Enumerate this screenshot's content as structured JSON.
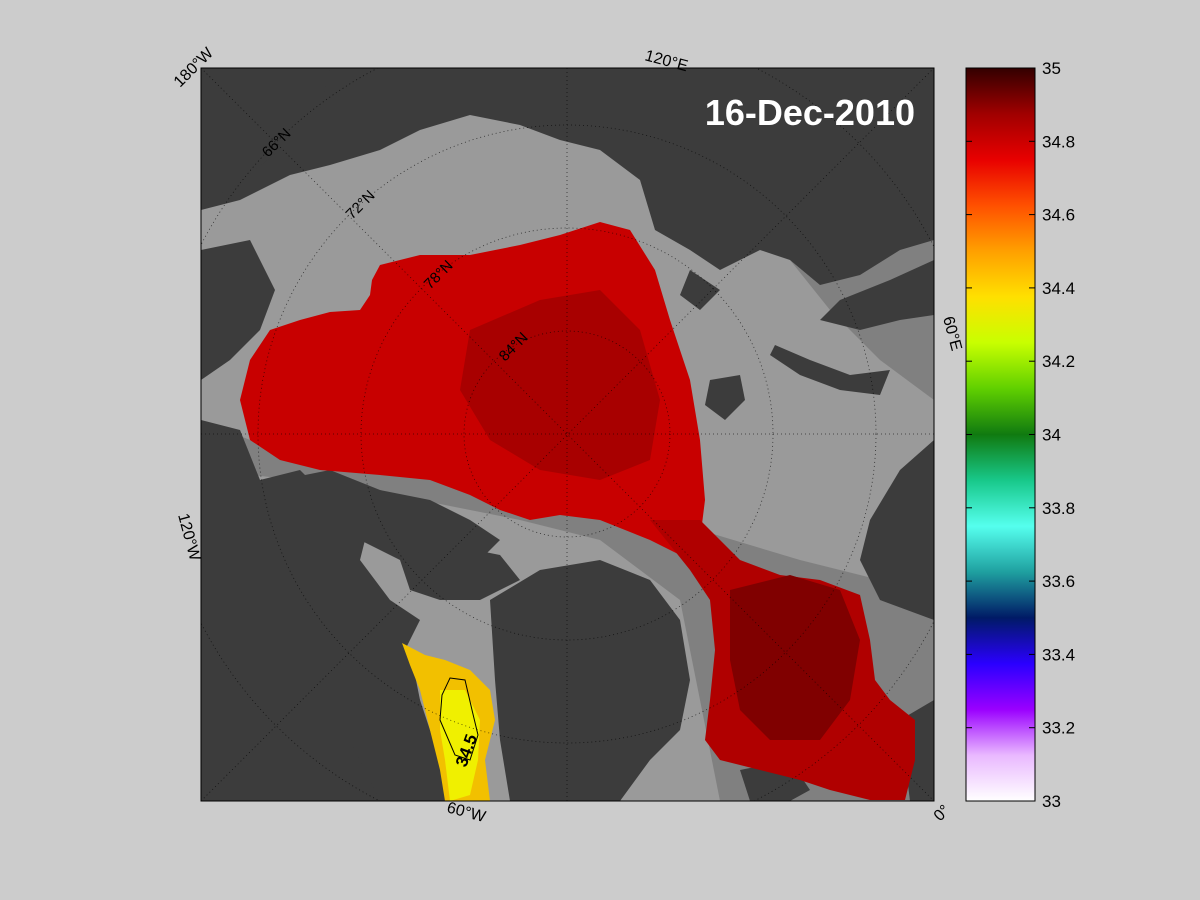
{
  "map": {
    "date_label": "16-Dec-2010",
    "longitude_labels": [
      "180°W",
      "120°E",
      "60°E",
      "0°",
      "60°W",
      "120°W"
    ],
    "latitude_labels": [
      "66°N",
      "72°N",
      "78°N",
      "84°N"
    ],
    "contour_label": "34.5",
    "colors": {
      "background": "#cccccc",
      "land": "#3c3c3c",
      "ocean_no_data": "#808080",
      "shelf": "#9a9a9a"
    }
  },
  "colorbar": {
    "min": 33,
    "max": 35,
    "ticks": [
      "35",
      "34.8",
      "34.6",
      "34.4",
      "34.2",
      "34",
      "33.8",
      "33.6",
      "33.4",
      "33.2",
      "33"
    ],
    "colors": [
      "#ffffff",
      "#e9b8ff",
      "#9a00ff",
      "#2a00ff",
      "#001a66",
      "#1fa0a0",
      "#55ffee",
      "#18c88a",
      "#107a10",
      "#60d000",
      "#c8ff00",
      "#ffe000",
      "#ffa000",
      "#ff5000",
      "#e80000",
      "#a00000",
      "#330000"
    ]
  }
}
